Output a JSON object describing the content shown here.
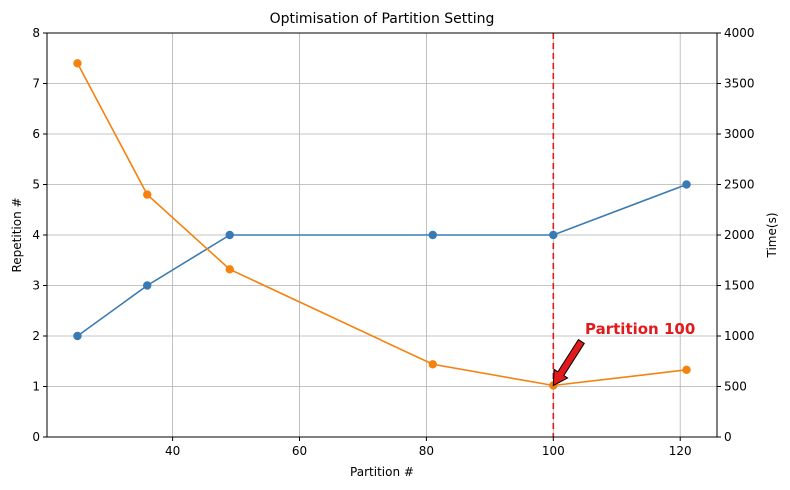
{
  "chart_data": {
    "type": "line",
    "title": "Optimisation of Partition Setting",
    "xlabel": "Partition #",
    "ylabel_left": "Repetition #",
    "ylabel_right": "Time(s)",
    "xlim": [
      20.2,
      125.8
    ],
    "ylim_left": [
      0,
      8
    ],
    "ylim_right": [
      0,
      4000
    ],
    "xticks": [
      40,
      60,
      80,
      100,
      120
    ],
    "yticks_left": [
      0,
      1,
      2,
      3,
      4,
      5,
      6,
      7,
      8
    ],
    "yticks_right": [
      0,
      500,
      1000,
      1500,
      2000,
      2500,
      3000,
      3500,
      4000
    ],
    "grid": true,
    "series": [
      {
        "axis": "left",
        "color": "#3a7ab3",
        "x": [
          25,
          36,
          49,
          81,
          100,
          121
        ],
        "y": [
          2,
          3,
          4,
          4,
          4,
          5
        ]
      },
      {
        "axis": "right",
        "color": "#f5820f",
        "x": [
          25,
          36,
          49,
          81,
          100,
          121
        ],
        "y": [
          3700,
          2400,
          1660,
          720,
          510,
          665
        ]
      }
    ],
    "vline": {
      "x": 100,
      "color": "#e31a1c",
      "style": "dashed"
    },
    "annotation": {
      "text": "Partition 100",
      "color": "#e31a1c",
      "target": {
        "x": 100,
        "y_right": 510
      },
      "text_pos": {
        "x": 105,
        "y_right": 1000
      }
    }
  }
}
